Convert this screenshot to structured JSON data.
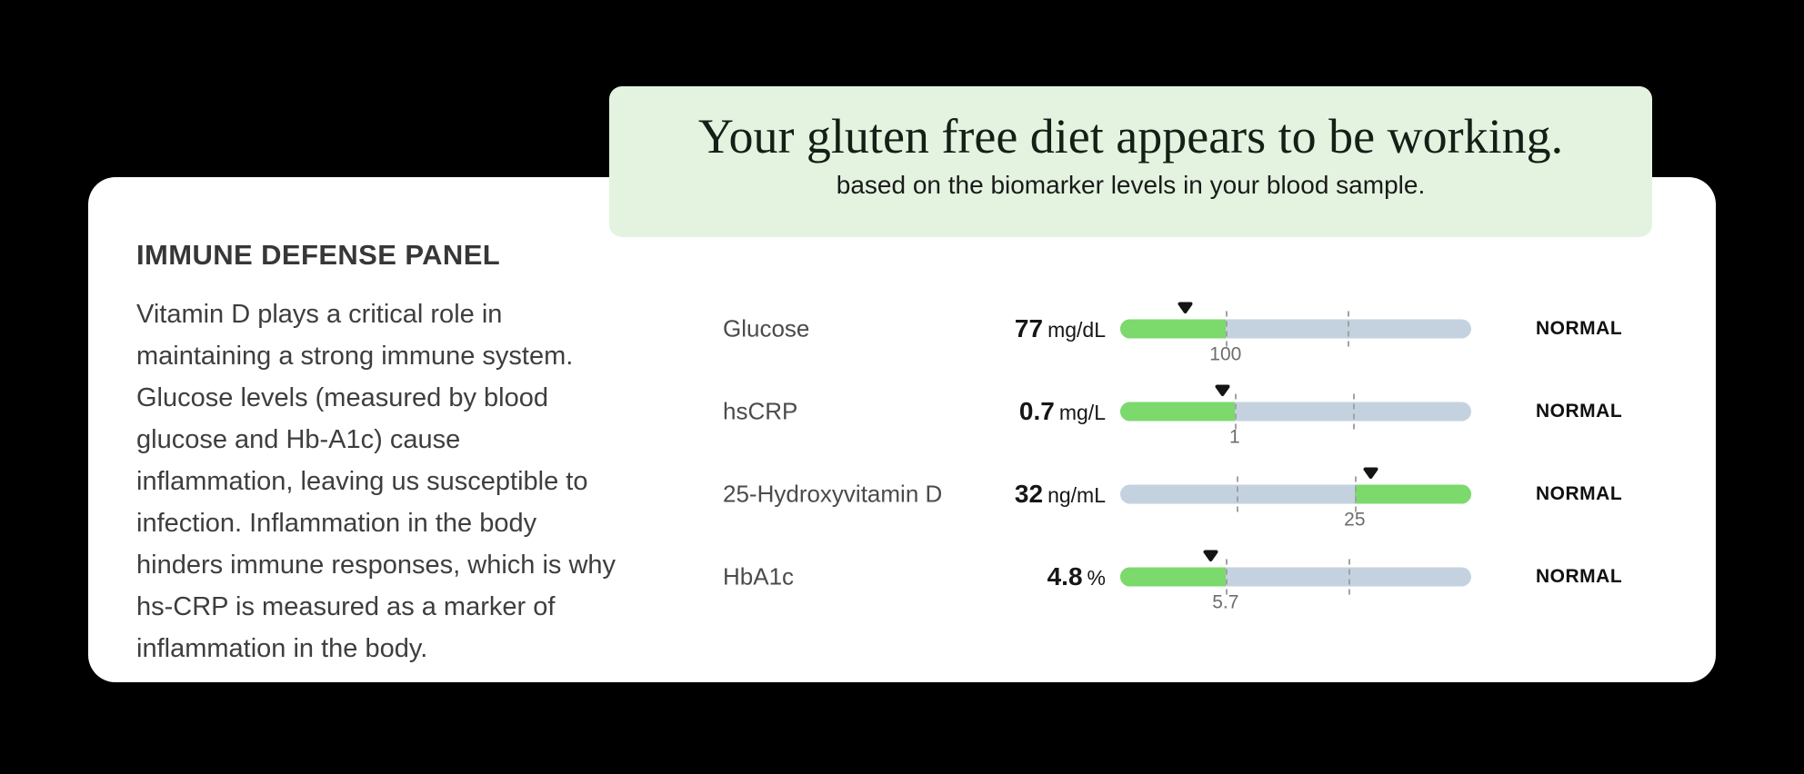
{
  "colors": {
    "page_bg": "#000000",
    "card_bg": "#ffffff",
    "banner_bg": "#e3f3e0",
    "range_green": "#7cd96c",
    "range_track": "#c3d2de",
    "marker": "#141414"
  },
  "banner": {
    "title": "Your gluten free diet appears to be working.",
    "subtitle": "based on the biomarker levels in your blood sample."
  },
  "panel": {
    "heading": "IMMUNE DEFENSE PANEL",
    "description": "Vitamin D plays a critical role in\nmaintaining a strong immune system.\nGlucose levels (measured by blood\nglucose and Hb-A1c) cause\ninflammation, leaving us susceptible to\ninfection. Inflammation in the body\nhinders immune responses, which is why\nhs-CRP is measured as a marker of\ninflammation in the body."
  },
  "biomarkers": [
    {
      "name": "Glucose",
      "value": "77",
      "unit": "mg/dL",
      "status": "NORMAL",
      "bar": {
        "green_pct": 30,
        "green_side": "left",
        "marker_pct": 18.4,
        "dash1_pct": 30,
        "dash2_pct": 64.8,
        "threshold_label": "100",
        "threshold_pct": 30
      }
    },
    {
      "name": "hsCRP",
      "value": "0.7",
      "unit": "mg/L",
      "status": "NORMAL",
      "bar": {
        "green_pct": 32.6,
        "green_side": "left",
        "marker_pct": 29,
        "dash1_pct": 32.6,
        "dash2_pct": 66.3,
        "threshold_label": "1",
        "threshold_pct": 32.6
      }
    },
    {
      "name": "25-Hydroxyvitamin D",
      "value": "32",
      "unit": "ng/mL",
      "status": "NORMAL",
      "bar": {
        "green_pct": 33.2,
        "green_side": "right",
        "marker_pct": 71.2,
        "dash1_pct": 33.2,
        "dash2_pct": 66.8,
        "threshold_label": "25",
        "threshold_pct": 66.8
      }
    },
    {
      "name": "HbA1c",
      "value": "4.8",
      "unit": "%",
      "status": "NORMAL",
      "bar": {
        "green_pct": 30,
        "green_side": "left",
        "marker_pct": 25.6,
        "dash1_pct": 30,
        "dash2_pct": 65,
        "threshold_label": "5.7",
        "threshold_pct": 30
      }
    }
  ]
}
